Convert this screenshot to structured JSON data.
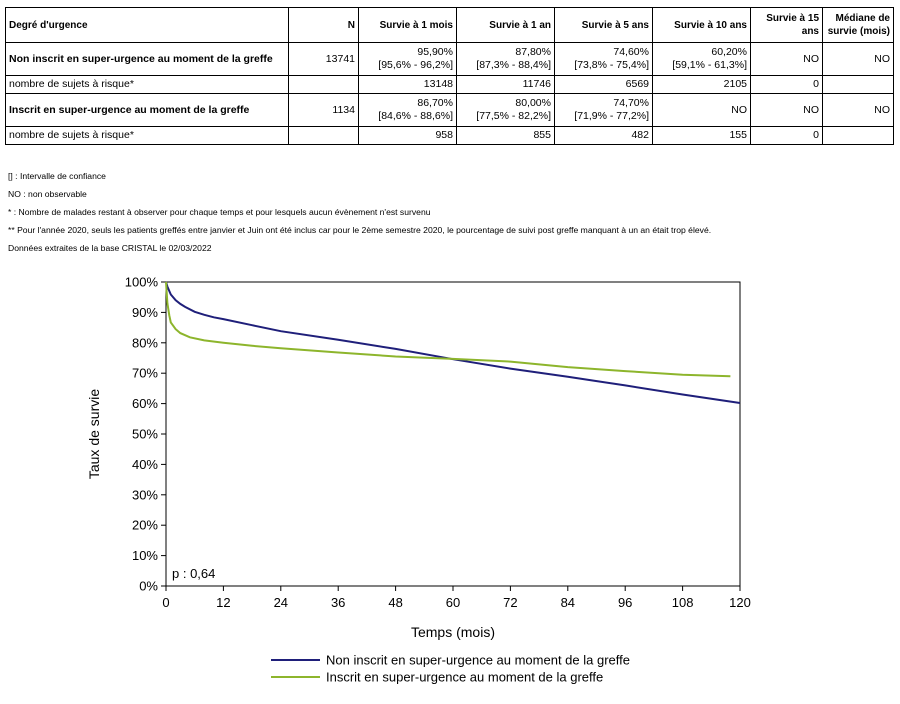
{
  "table": {
    "headers": [
      "Degré d'urgence",
      "N",
      "Survie à 1 mois",
      "Survie à 1 an",
      "Survie à 5 ans",
      "Survie à 10 ans",
      "Survie à 15 ans",
      "Médiane de survie (mois)"
    ],
    "rows": [
      {
        "kind": "main",
        "label": "Non inscrit en super-urgence au moment de la greffe",
        "n": "13741",
        "cells": [
          [
            "95,90%",
            "[95,6% - 96,2%]"
          ],
          [
            "87,80%",
            "[87,3% - 88,4%]"
          ],
          [
            "74,60%",
            "[73,8% - 75,4%]"
          ],
          [
            "60,20%",
            "[59,1% - 61,3%]"
          ],
          [
            "NO",
            ""
          ],
          [
            "NO",
            ""
          ]
        ]
      },
      {
        "kind": "risk",
        "label": "nombre de sujets à risque*",
        "n": "",
        "cells": [
          [
            "13148",
            ""
          ],
          [
            "11746",
            ""
          ],
          [
            "6569",
            ""
          ],
          [
            "2105",
            ""
          ],
          [
            "0",
            ""
          ],
          [
            "",
            ""
          ]
        ]
      },
      {
        "kind": "main",
        "label": "Inscrit en super-urgence au moment de la greffe",
        "n": "1134",
        "cells": [
          [
            "86,70%",
            "[84,6% - 88,6%]"
          ],
          [
            "80,00%",
            "[77,5% - 82,2%]"
          ],
          [
            "74,70%",
            "[71,9% - 77,2%]"
          ],
          [
            "NO",
            ""
          ],
          [
            "NO",
            ""
          ],
          [
            "NO",
            ""
          ]
        ]
      },
      {
        "kind": "risk",
        "label": "nombre de sujets à risque*",
        "n": "",
        "cells": [
          [
            "958",
            ""
          ],
          [
            "855",
            ""
          ],
          [
            "482",
            ""
          ],
          [
            "155",
            ""
          ],
          [
            "0",
            ""
          ],
          [
            "",
            ""
          ]
        ]
      }
    ]
  },
  "notes": [
    "[] : Intervalle de confiance",
    "NO : non observable",
    "* : Nombre de malades restant à observer pour chaque temps et pour lesquels aucun évènement n'est survenu",
    "** Pour l'année 2020, seuls les patients greffés entre janvier et Juin ont été inclus car pour le 2ème semestre 2020, le pourcentage de suivi post greffe manquant à un an était trop élevé.",
    "Données extraites de la base CRISTAL le 02/03/2022"
  ],
  "chart_data": {
    "type": "line",
    "xlabel": "Temps (mois)",
    "ylabel": "Taux de survie",
    "xlim": [
      0,
      120
    ],
    "ylim": [
      0,
      100
    ],
    "xticks": [
      0,
      12,
      24,
      36,
      48,
      60,
      72,
      84,
      96,
      108,
      120
    ],
    "yticks": [
      0,
      10,
      20,
      30,
      40,
      50,
      60,
      70,
      80,
      90,
      100
    ],
    "ytick_labels": [
      "0%",
      "10%",
      "20%",
      "30%",
      "40%",
      "50%",
      "60%",
      "70%",
      "80%",
      "90%",
      "100%"
    ],
    "annotation": "p : 0,64",
    "legend_position": "bottom",
    "series": [
      {
        "name": "Non inscrit en super-urgence au moment de la greffe",
        "color": "#1f1f7a",
        "x": [
          0,
          0.3,
          1,
          2,
          3,
          4,
          6,
          8,
          10,
          12,
          18,
          24,
          36,
          48,
          60,
          72,
          84,
          96,
          108,
          120
        ],
        "y": [
          100,
          98.5,
          95.9,
          94,
          92.8,
          91.8,
          90.2,
          89.2,
          88.4,
          87.8,
          85.8,
          83.8,
          81,
          78,
          74.6,
          71.5,
          68.8,
          66,
          63,
          60.2
        ]
      },
      {
        "name": "Inscrit en super-urgence au moment de la greffe",
        "color": "#8db52c",
        "x": [
          0,
          0.3,
          0.7,
          1,
          2,
          3,
          5,
          8,
          12,
          18,
          24,
          36,
          48,
          60,
          72,
          84,
          96,
          108,
          118
        ],
        "y": [
          100,
          93,
          89,
          86.7,
          84.5,
          83.2,
          81.8,
          80.8,
          80,
          79,
          78.2,
          76.8,
          75.5,
          74.7,
          73.8,
          72,
          70.7,
          69.5,
          69
        ]
      }
    ]
  }
}
